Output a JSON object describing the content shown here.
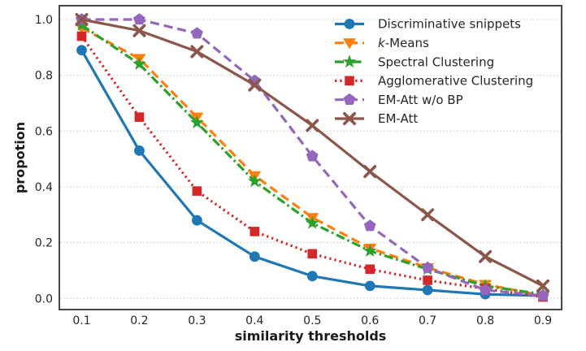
{
  "figure": {
    "background": "#ffffff",
    "frame_color": "#333333",
    "grid_color": "#c8c8c8",
    "text_color": "#262626"
  },
  "chart_data": {
    "type": "line",
    "title": "",
    "xlabel": "similarity thresholds",
    "ylabel": "propotion",
    "x": [
      0.1,
      0.2,
      0.3,
      0.4,
      0.5,
      0.6,
      0.7,
      0.8,
      0.9
    ],
    "x_tick_labels": [
      "0.1",
      "0.2",
      "0.3",
      "0.4",
      "0.5",
      "0.6",
      "0.7",
      "0.8",
      "0.9"
    ],
    "y_ticks": [
      0.0,
      0.2,
      0.4,
      0.6,
      0.8,
      1.0
    ],
    "y_tick_labels": [
      "0.0",
      "0.2",
      "0.4",
      "0.6",
      "0.8",
      "1.0"
    ],
    "xlim": [
      0.061,
      0.932
    ],
    "ylim": [
      -0.04,
      1.05
    ],
    "grid": "horizontal-dotted",
    "legend_position": "upper-right-inside-frameless",
    "series": [
      {
        "name": "Discriminative snippets",
        "color": "#1f77b4",
        "line_style": "solid",
        "marker": "circle",
        "values": [
          0.89,
          0.53,
          0.28,
          0.15,
          0.08,
          0.045,
          0.03,
          0.015,
          0.01
        ]
      },
      {
        "name": "k-Means",
        "name_parts": [
          [
            "k",
            true
          ],
          [
            "-Means",
            false
          ]
        ],
        "color": "#ff7f0e",
        "line_style": "dashed",
        "marker": "triangle-down",
        "values": [
          0.97,
          0.86,
          0.65,
          0.44,
          0.29,
          0.18,
          0.11,
          0.05,
          0.01
        ]
      },
      {
        "name": "Spectral Clustering",
        "color": "#2ca02c",
        "line_style": "dashdot",
        "marker": "star",
        "values": [
          0.98,
          0.84,
          0.63,
          0.42,
          0.27,
          0.17,
          0.105,
          0.045,
          0.015
        ]
      },
      {
        "name": "Agglomerative Clustering",
        "color": "#d62728",
        "line_style": "dotted",
        "marker": "square",
        "values": [
          0.94,
          0.65,
          0.385,
          0.24,
          0.16,
          0.105,
          0.065,
          0.035,
          0.005
        ]
      },
      {
        "name": "EM-Att w/o BP",
        "color": "#9467bd",
        "line_style": "dashed",
        "marker": "pentagon",
        "values": [
          1.0,
          1.0,
          0.95,
          0.78,
          0.51,
          0.26,
          0.11,
          0.03,
          0.01
        ]
      },
      {
        "name": "EM-Att",
        "color": "#8c564b",
        "line_style": "solid",
        "marker": "x",
        "values": [
          1.0,
          0.96,
          0.885,
          0.765,
          0.62,
          0.455,
          0.3,
          0.15,
          0.045
        ]
      }
    ]
  }
}
